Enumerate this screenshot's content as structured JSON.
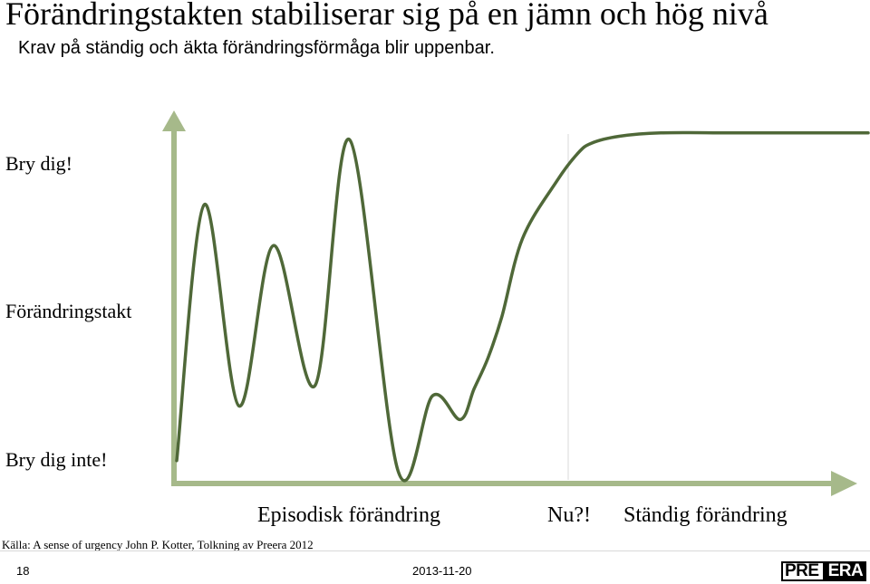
{
  "header": {
    "title": "Förändringstakten  stabiliserar sig på en jämn och hög nivå",
    "subtitle": "Krav på ständig och äkta förändringsförmåga blir uppenbar."
  },
  "chart_data": {
    "type": "line",
    "title": "Förändringstakten  stabiliserar sig på en jämn och hög nivå",
    "ylabel": "Förändringstakt",
    "y_top_label": "Bry dig!",
    "y_bottom_label": "Bry dig inte!",
    "x_regions": [
      "Episodisk förändring",
      "Nu?!",
      "Ständig förändring"
    ],
    "series": [
      {
        "name": "Förändringstakt",
        "x": [
          0,
          0.04,
          0.09,
          0.14,
          0.2,
          0.25,
          0.32,
          0.37,
          0.41,
          0.43,
          0.45,
          0.47,
          0.5,
          0.55,
          0.58,
          0.6,
          0.64,
          0.7,
          0.8,
          0.9,
          1.0
        ],
        "values": [
          0.03,
          0.78,
          0.19,
          0.66,
          0.25,
          0.97,
          0.0,
          0.22,
          0.15,
          0.24,
          0.33,
          0.45,
          0.68,
          0.85,
          0.93,
          0.96,
          0.98,
          0.99,
          0.99,
          0.99,
          0.99
        ]
      }
    ],
    "color": "#4f6838",
    "axis_color": "#a6b98a",
    "divider_color": "#d9d9d9"
  },
  "footer": {
    "source": "Källa: A sense of urgency John P. Kotter, Tolkning av Preera 2012",
    "slide_number": "18",
    "date": "2013-11-20",
    "logo_left": "PRE",
    "logo_right": "ERA"
  }
}
